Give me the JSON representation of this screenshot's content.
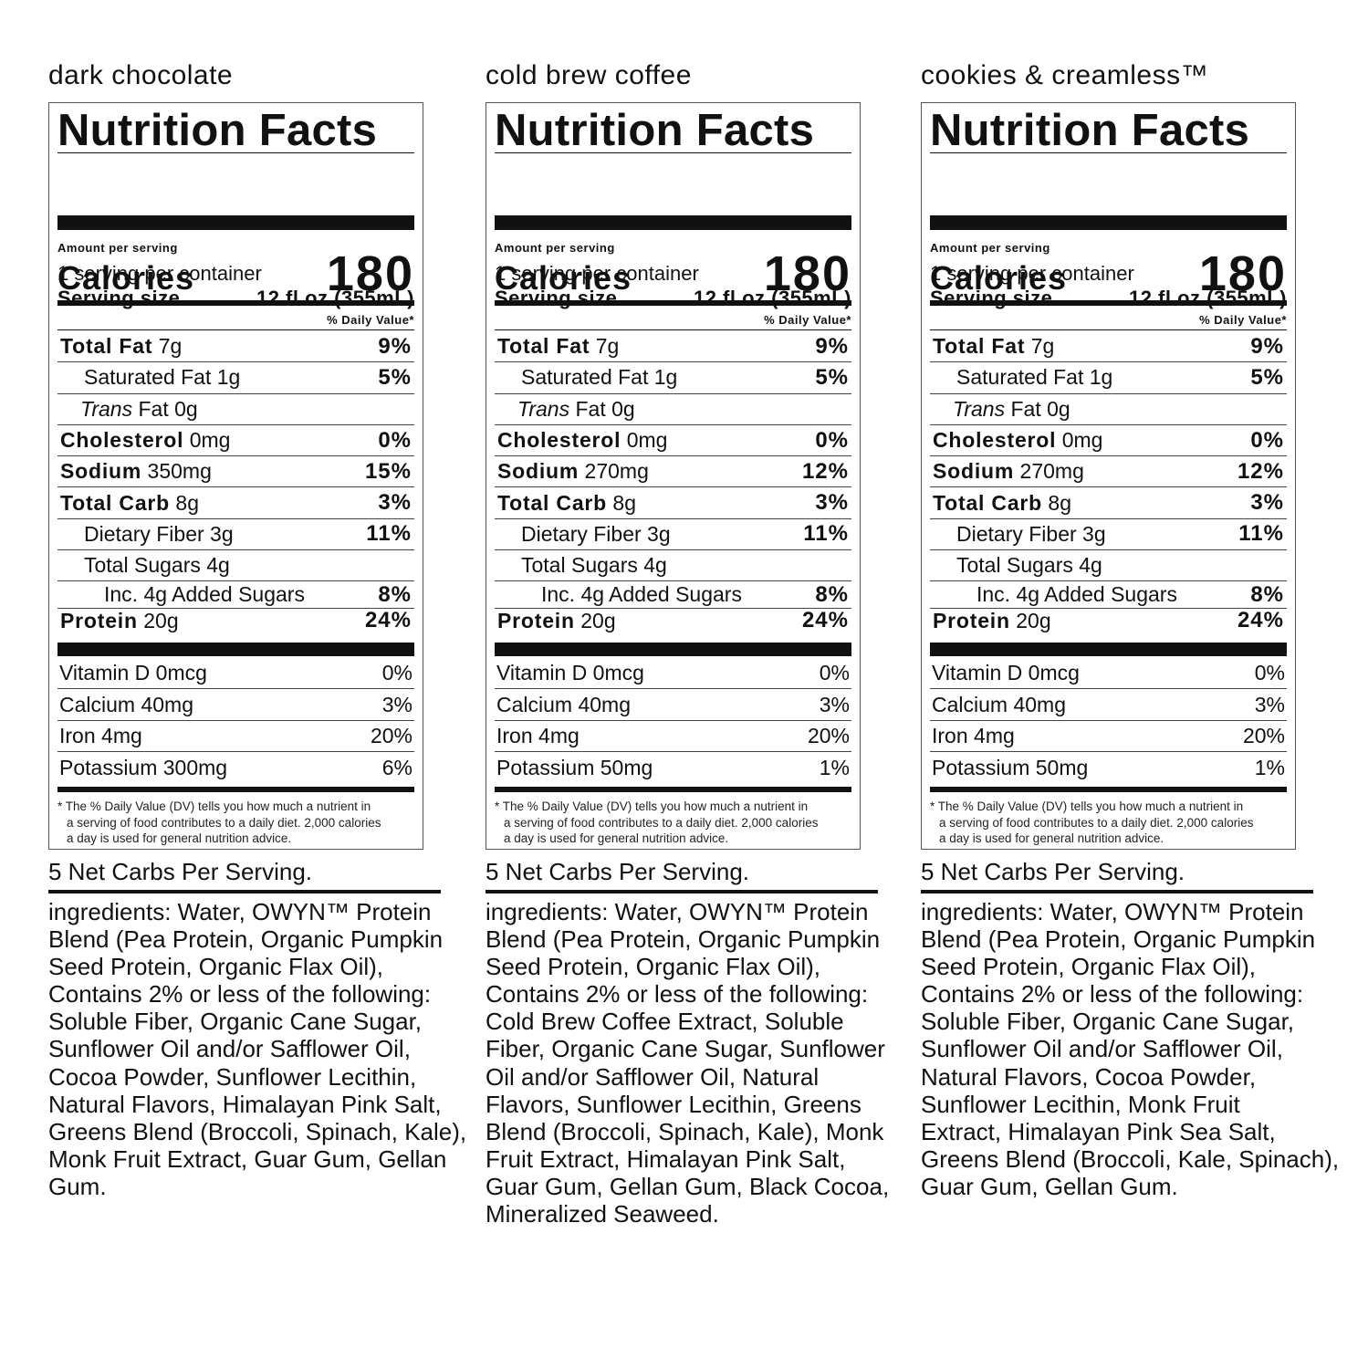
{
  "panels": [
    {
      "flavor": "dark chocolate",
      "title": "Nutrition Facts",
      "servings": "1 serving per container",
      "serving_size_label": "Serving size",
      "serving_size_value": "12 fl oz (355mL)",
      "amount_per_serving": "Amount per serving",
      "calories_label": "Calories",
      "calories": "180",
      "dv_header": "% Daily Value*",
      "nutrients": [
        {
          "name": "Total Fat",
          "amount": "7g",
          "dv": "9%",
          "bold": true,
          "indent": 0
        },
        {
          "name": "Saturated Fat",
          "amount": "1g",
          "dv": "5%",
          "bold": false,
          "indent": 1
        },
        {
          "name": "Trans",
          "name_suffix": "Fat",
          "amount": "0g",
          "dv": "",
          "bold": false,
          "indent": 1,
          "italic": true
        },
        {
          "name": "Cholesterol",
          "amount": "0mg",
          "dv": "0%",
          "bold": true,
          "indent": 0
        },
        {
          "name": "Sodium",
          "amount": "350mg",
          "dv": "15%",
          "bold": true,
          "indent": 0
        },
        {
          "name": "Total Carb",
          "amount": "8g",
          "dv": "3%",
          "bold": true,
          "indent": 0
        },
        {
          "name": "Dietary Fiber",
          "amount": "3g",
          "dv": "11%",
          "bold": false,
          "indent": 1
        },
        {
          "name": "Total Sugars",
          "amount": "4g",
          "dv": "",
          "bold": false,
          "indent": 1
        },
        {
          "name": "Inc. 4g Added Sugars",
          "amount": "",
          "dv": "8%",
          "bold": false,
          "indent": 2
        },
        {
          "name": "Protein",
          "amount": "20g",
          "dv": "24%",
          "bold": true,
          "indent": 0
        }
      ],
      "vitamins": [
        {
          "name": "Vitamin D 0mcg",
          "dv": "0%"
        },
        {
          "name": "Calcium 40mg",
          "dv": "3%"
        },
        {
          "name": "Iron 4mg",
          "dv": "20%"
        },
        {
          "name": "Potassium 300mg",
          "dv": "6%"
        }
      ],
      "footnote": [
        "* The % Daily Value (DV) tells you how much a nutrient in",
        "a serving of food contributes to a daily diet. 2,000 calories",
        "a day is used for general nutrition advice."
      ],
      "net_carbs": "5 Net Carbs Per Serving.",
      "ingredients_label": "ingredients:",
      "ingredients_lines": [
        " Water, OWYN™ Protein",
        "Blend (Pea Protein, Organic Pumpkin",
        "Seed Protein, Organic Flax Oil),",
        "Contains 2% or less of the following:",
        "Soluble Fiber, Organic Cane Sugar,",
        "Sunflower Oil and/or Safflower Oil,",
        "Cocoa Powder, Sunflower Lecithin,",
        "Natural Flavors, Himalayan Pink Salt,",
        "Greens Blend (Broccoli, Spinach, Kale),",
        "Monk Fruit Extract, Guar Gum, Gellan",
        "Gum."
      ]
    },
    {
      "flavor": "cold brew coffee",
      "title": "Nutrition Facts",
      "servings": "1 serving per container",
      "serving_size_label": "Serving size",
      "serving_size_value": "12 fl oz (355mL)",
      "amount_per_serving": "Amount per serving",
      "calories_label": "Calories",
      "calories": "180",
      "dv_header": "% Daily Value*",
      "nutrients": [
        {
          "name": "Total Fat",
          "amount": "7g",
          "dv": "9%",
          "bold": true,
          "indent": 0
        },
        {
          "name": "Saturated Fat",
          "amount": "1g",
          "dv": "5%",
          "bold": false,
          "indent": 1
        },
        {
          "name": "Trans",
          "name_suffix": "Fat",
          "amount": "0g",
          "dv": "",
          "bold": false,
          "indent": 1,
          "italic": true
        },
        {
          "name": "Cholesterol",
          "amount": "0mg",
          "dv": "0%",
          "bold": true,
          "indent": 0
        },
        {
          "name": "Sodium",
          "amount": "270mg",
          "dv": "12%",
          "bold": true,
          "indent": 0
        },
        {
          "name": "Total Carb",
          "amount": "8g",
          "dv": "3%",
          "bold": true,
          "indent": 0
        },
        {
          "name": "Dietary Fiber",
          "amount": "3g",
          "dv": "11%",
          "bold": false,
          "indent": 1
        },
        {
          "name": "Total Sugars",
          "amount": "4g",
          "dv": "",
          "bold": false,
          "indent": 1
        },
        {
          "name": "Inc. 4g Added Sugars",
          "amount": "",
          "dv": "8%",
          "bold": false,
          "indent": 2
        },
        {
          "name": "Protein",
          "amount": "20g",
          "dv": "24%",
          "bold": true,
          "indent": 0
        }
      ],
      "vitamins": [
        {
          "name": "Vitamin D 0mcg",
          "dv": "0%"
        },
        {
          "name": "Calcium 40mg",
          "dv": "3%"
        },
        {
          "name": "Iron 4mg",
          "dv": "20%"
        },
        {
          "name": "Potassium 50mg",
          "dv": "1%"
        }
      ],
      "footnote": [
        "* The % Daily Value (DV) tells you how much a nutrient in",
        "a serving of food contributes to a daily diet. 2,000 calories",
        "a day is used for general nutrition advice."
      ],
      "net_carbs": "5 Net Carbs Per Serving.",
      "ingredients_label": "ingredients:",
      "ingredients_lines": [
        " Water, OWYN™ Protein",
        "Blend (Pea Protein, Organic Pumpkin",
        "Seed Protein, Organic Flax Oil),",
        "Contains 2% or less of the following:",
        "Cold Brew Coffee Extract, Soluble",
        "Fiber, Organic Cane Sugar, Sunflower",
        "Oil and/or Safflower Oil, Natural",
        "Flavors, Sunflower Lecithin, Greens",
        "Blend (Broccoli, Spinach, Kale), Monk",
        "Fruit Extract, Himalayan Pink Salt,",
        "Guar Gum, Gellan Gum, Black Cocoa,",
        "Mineralized Seaweed."
      ]
    },
    {
      "flavor": "cookies & creamless™",
      "title": "Nutrition Facts",
      "servings": "1 serving per container",
      "serving_size_label": "Serving size",
      "serving_size_value": "12 fl oz (355mL)",
      "amount_per_serving": "Amount per serving",
      "calories_label": "Calories",
      "calories": "180",
      "dv_header": "% Daily Value*",
      "nutrients": [
        {
          "name": "Total Fat",
          "amount": "7g",
          "dv": "9%",
          "bold": true,
          "indent": 0
        },
        {
          "name": "Saturated Fat",
          "amount": "1g",
          "dv": "5%",
          "bold": false,
          "indent": 1
        },
        {
          "name": "Trans",
          "name_suffix": "Fat",
          "amount": "0g",
          "dv": "",
          "bold": false,
          "indent": 1,
          "italic": true
        },
        {
          "name": "Cholesterol",
          "amount": "0mg",
          "dv": "0%",
          "bold": true,
          "indent": 0
        },
        {
          "name": "Sodium",
          "amount": "270mg",
          "dv": "12%",
          "bold": true,
          "indent": 0
        },
        {
          "name": "Total Carb",
          "amount": "8g",
          "dv": "3%",
          "bold": true,
          "indent": 0
        },
        {
          "name": "Dietary Fiber",
          "amount": "3g",
          "dv": "11%",
          "bold": false,
          "indent": 1
        },
        {
          "name": "Total Sugars",
          "amount": "4g",
          "dv": "",
          "bold": false,
          "indent": 1
        },
        {
          "name": "Inc. 4g Added Sugars",
          "amount": "",
          "dv": "8%",
          "bold": false,
          "indent": 2
        },
        {
          "name": "Protein",
          "amount": "20g",
          "dv": "24%",
          "bold": true,
          "indent": 0
        }
      ],
      "vitamins": [
        {
          "name": "Vitamin D 0mcg",
          "dv": "0%"
        },
        {
          "name": "Calcium 40mg",
          "dv": "3%"
        },
        {
          "name": "Iron 4mg",
          "dv": "20%"
        },
        {
          "name": "Potassium 50mg",
          "dv": "1%"
        }
      ],
      "footnote": [
        "* The % Daily Value (DV) tells you how much a nutrient in",
        "a serving of food contributes to a daily diet. 2,000 calories",
        "a day is used for general nutrition advice."
      ],
      "net_carbs": "5 Net Carbs Per Serving.",
      "ingredients_label": "ingredients:",
      "ingredients_lines": [
        " Water, OWYN™ Protein",
        "Blend (Pea Protein, Organic Pumpkin",
        "Seed Protein, Organic Flax Oil),",
        "Contains 2% or less of the following:",
        "Soluble Fiber, Organic Cane Sugar,",
        "Sunflower Oil and/or Safflower Oil,",
        "Natural Flavors, Cocoa Powder,",
        "Sunflower Lecithin, Monk Fruit",
        "Extract, Himalayan Pink Sea Salt,",
        "Greens Blend (Broccoli, Kale, Spinach),",
        "Guar Gum, Gellan Gum."
      ]
    }
  ]
}
